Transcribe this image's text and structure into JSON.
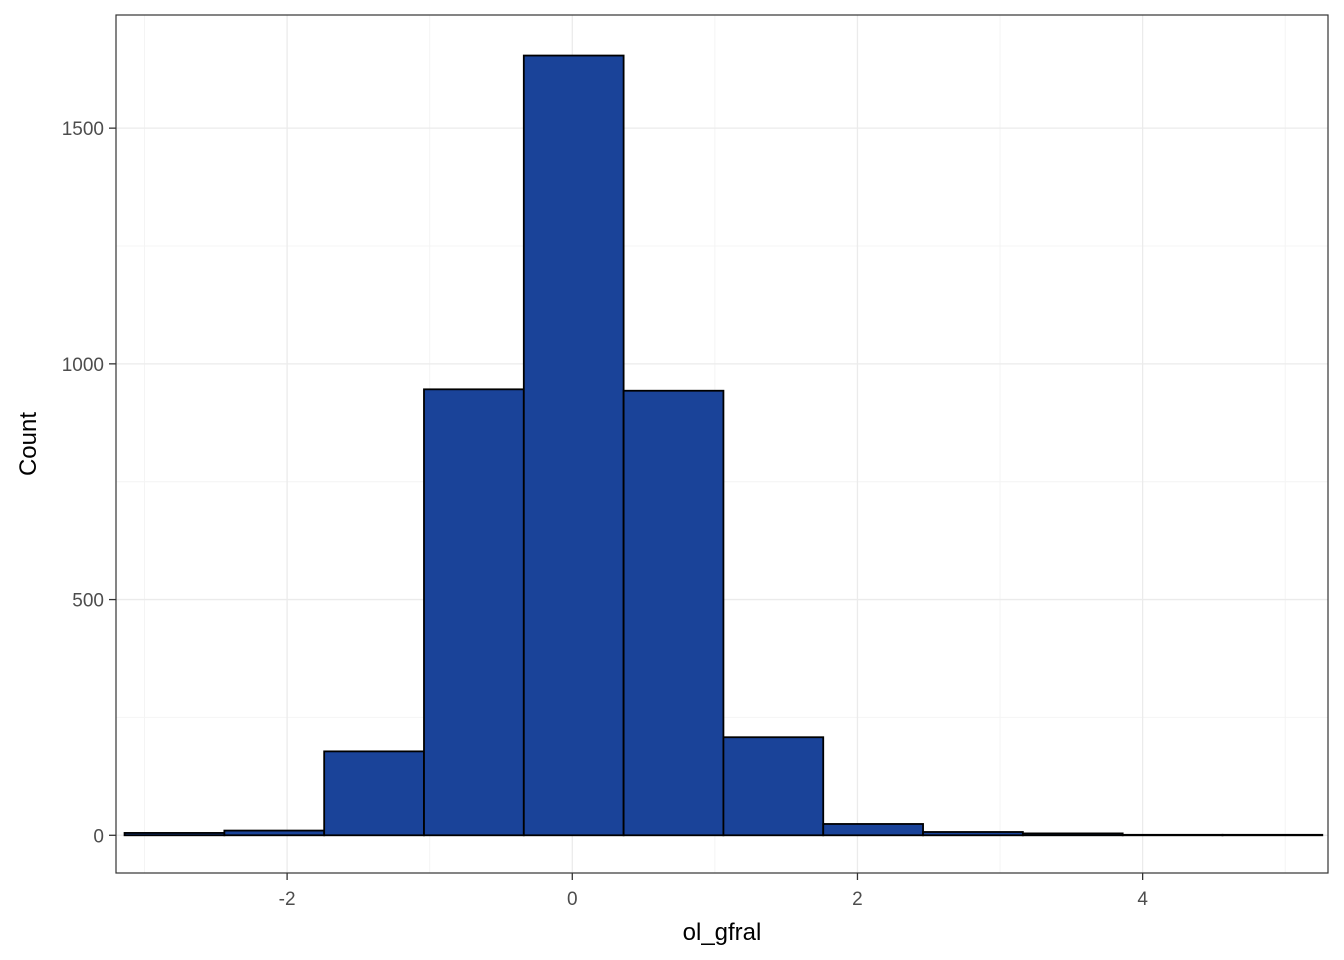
{
  "chart_data": {
    "type": "bar",
    "subtype": "histogram",
    "xlabel": "ol_gfral",
    "ylabel": "Count",
    "xlim": [
      -3.2,
      5.3
    ],
    "ylim": [
      -80,
      1740
    ],
    "x_ticks": [
      -2,
      0,
      2,
      4
    ],
    "x_tick_labels": [
      "-2",
      "0",
      "2",
      "4"
    ],
    "y_ticks": [
      0,
      500,
      1000,
      1500
    ],
    "y_tick_labels": [
      "0",
      "500",
      "1000",
      "1500"
    ],
    "grid": true,
    "legend": "none",
    "bins": [
      {
        "x0": -3.14,
        "x1": -2.44,
        "count": 5
      },
      {
        "x0": -2.44,
        "x1": -1.74,
        "count": 10
      },
      {
        "x0": -1.74,
        "x1": -1.04,
        "count": 178
      },
      {
        "x0": -1.04,
        "x1": -0.34,
        "count": 946
      },
      {
        "x0": -0.34,
        "x1": 0.36,
        "count": 1654
      },
      {
        "x0": 0.36,
        "x1": 1.06,
        "count": 943
      },
      {
        "x0": 1.06,
        "x1": 1.76,
        "count": 208
      },
      {
        "x0": 1.76,
        "x1": 2.46,
        "count": 24
      },
      {
        "x0": 2.46,
        "x1": 3.16,
        "count": 7
      },
      {
        "x0": 3.16,
        "x1": 3.86,
        "count": 4
      },
      {
        "x0": 3.86,
        "x1": 4.56,
        "count": 1
      },
      {
        "x0": 4.56,
        "x1": 5.26,
        "count": 1
      }
    ],
    "colors": {
      "bar_fill": "#1a4399",
      "bar_stroke": "#000000",
      "grid_major": "#ebebeb",
      "grid_minor": "#f4f4f4",
      "panel_border": "#333333"
    }
  }
}
